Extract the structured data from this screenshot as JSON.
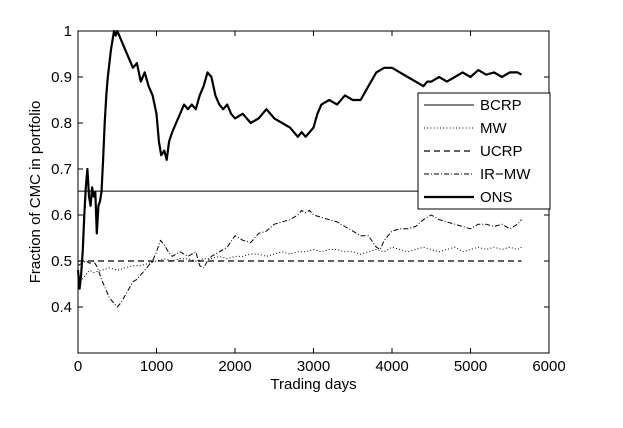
{
  "chart_data": {
    "type": "line",
    "title": "",
    "xlabel": "Trading days",
    "ylabel": "Fraction of CMC in portfolio",
    "xlim": [
      0,
      6000
    ],
    "ylim": [
      0.3,
      1.0
    ],
    "xticks": [
      0,
      1000,
      2000,
      3000,
      4000,
      5000,
      6000
    ],
    "yticks": [
      0.4,
      0.5,
      0.6,
      0.7,
      0.8,
      0.9,
      1.0
    ],
    "xtick_labels": [
      "0",
      "1000",
      "2000",
      "3000",
      "4000",
      "5000",
      "6000"
    ],
    "ytick_labels": [
      "0.4",
      "0.5",
      "0.6",
      "0.7",
      "0.8",
      "0.9",
      "1"
    ],
    "grid": false,
    "legend_position": "right",
    "series": [
      {
        "name": "BCRP",
        "style": "solid-thin",
        "color": "#000000",
        "x": [
          0,
          5650
        ],
        "y": [
          0.652,
          0.652
        ]
      },
      {
        "name": "MW",
        "style": "dotted",
        "color": "#000000",
        "x": [
          0,
          50,
          100,
          150,
          200,
          300,
          400,
          500,
          600,
          700,
          800,
          900,
          1000,
          1100,
          1200,
          1300,
          1400,
          1500,
          1600,
          1700,
          1800,
          1900,
          2000,
          2100,
          2200,
          2300,
          2400,
          2500,
          2600,
          2700,
          2800,
          2900,
          3000,
          3100,
          3200,
          3300,
          3400,
          3500,
          3600,
          3700,
          3800,
          3900,
          4000,
          4100,
          4200,
          4300,
          4400,
          4500,
          4600,
          4700,
          4800,
          4900,
          5000,
          5100,
          5200,
          5300,
          5400,
          5500,
          5600,
          5650
        ],
        "y": [
          0.47,
          0.46,
          0.47,
          0.48,
          0.475,
          0.48,
          0.485,
          0.48,
          0.485,
          0.49,
          0.49,
          0.495,
          0.5,
          0.505,
          0.5,
          0.505,
          0.505,
          0.5,
          0.505,
          0.505,
          0.51,
          0.505,
          0.51,
          0.51,
          0.515,
          0.515,
          0.51,
          0.515,
          0.52,
          0.515,
          0.52,
          0.52,
          0.525,
          0.52,
          0.525,
          0.525,
          0.52,
          0.52,
          0.515,
          0.52,
          0.525,
          0.52,
          0.53,
          0.525,
          0.52,
          0.525,
          0.53,
          0.525,
          0.52,
          0.525,
          0.53,
          0.52,
          0.525,
          0.53,
          0.525,
          0.53,
          0.525,
          0.53,
          0.525,
          0.53
        ]
      },
      {
        "name": "UCRP",
        "style": "dashed",
        "color": "#000000",
        "x": [
          0,
          5650
        ],
        "y": [
          0.5,
          0.5
        ]
      },
      {
        "name": "IR−MW",
        "style": "dashdot",
        "color": "#000000",
        "x": [
          0,
          50,
          100,
          150,
          200,
          250,
          300,
          350,
          400,
          450,
          500,
          550,
          600,
          650,
          700,
          750,
          800,
          850,
          900,
          950,
          1000,
          1050,
          1100,
          1150,
          1200,
          1300,
          1400,
          1500,
          1550,
          1600,
          1650,
          1700,
          1800,
          1900,
          2000,
          2100,
          2200,
          2300,
          2400,
          2500,
          2600,
          2700,
          2800,
          2850,
          2900,
          2950,
          3000,
          3100,
          3200,
          3300,
          3400,
          3500,
          3600,
          3700,
          3800,
          3850,
          3900,
          4000,
          4100,
          4200,
          4300,
          4400,
          4500,
          4600,
          4700,
          4800,
          4900,
          5000,
          5100,
          5200,
          5300,
          5400,
          5500,
          5600,
          5650
        ],
        "y": [
          0.49,
          0.495,
          0.5,
          0.495,
          0.5,
          0.485,
          0.46,
          0.44,
          0.42,
          0.41,
          0.4,
          0.41,
          0.425,
          0.44,
          0.455,
          0.46,
          0.47,
          0.48,
          0.49,
          0.5,
          0.52,
          0.545,
          0.535,
          0.52,
          0.51,
          0.52,
          0.51,
          0.52,
          0.49,
          0.485,
          0.5,
          0.51,
          0.52,
          0.53,
          0.555,
          0.545,
          0.54,
          0.56,
          0.565,
          0.58,
          0.585,
          0.59,
          0.6,
          0.61,
          0.605,
          0.61,
          0.6,
          0.595,
          0.59,
          0.585,
          0.575,
          0.565,
          0.555,
          0.555,
          0.53,
          0.525,
          0.545,
          0.565,
          0.57,
          0.57,
          0.575,
          0.59,
          0.6,
          0.59,
          0.585,
          0.58,
          0.575,
          0.57,
          0.58,
          0.58,
          0.575,
          0.58,
          0.57,
          0.58,
          0.59
        ]
      },
      {
        "name": "ONS",
        "style": "solid-thick",
        "color": "#000000",
        "x": [
          0,
          20,
          40,
          60,
          80,
          100,
          120,
          140,
          160,
          180,
          200,
          220,
          240,
          260,
          280,
          300,
          320,
          340,
          360,
          380,
          400,
          420,
          440,
          460,
          480,
          500,
          550,
          600,
          650,
          700,
          750,
          800,
          850,
          900,
          950,
          1000,
          1030,
          1060,
          1100,
          1130,
          1160,
          1200,
          1250,
          1300,
          1350,
          1400,
          1450,
          1500,
          1550,
          1600,
          1650,
          1700,
          1750,
          1800,
          1850,
          1900,
          1950,
          2000,
          2100,
          2200,
          2300,
          2400,
          2500,
          2600,
          2700,
          2800,
          2850,
          2900,
          3000,
          3050,
          3100,
          3200,
          3300,
          3400,
          3500,
          3600,
          3700,
          3800,
          3900,
          4000,
          4100,
          4200,
          4300,
          4400,
          4450,
          4500,
          4600,
          4700,
          4800,
          4900,
          5000,
          5100,
          5200,
          5300,
          5400,
          5500,
          5600,
          5650
        ],
        "y": [
          0.48,
          0.44,
          0.47,
          0.52,
          0.6,
          0.66,
          0.7,
          0.64,
          0.62,
          0.66,
          0.64,
          0.65,
          0.56,
          0.62,
          0.63,
          0.65,
          0.72,
          0.8,
          0.86,
          0.9,
          0.93,
          0.96,
          0.98,
          1.0,
          0.99,
          1.0,
          0.98,
          0.96,
          0.94,
          0.92,
          0.93,
          0.89,
          0.91,
          0.88,
          0.86,
          0.82,
          0.76,
          0.73,
          0.74,
          0.72,
          0.76,
          0.78,
          0.8,
          0.82,
          0.84,
          0.83,
          0.84,
          0.83,
          0.86,
          0.88,
          0.91,
          0.9,
          0.86,
          0.84,
          0.83,
          0.84,
          0.82,
          0.81,
          0.82,
          0.8,
          0.81,
          0.83,
          0.81,
          0.8,
          0.79,
          0.77,
          0.78,
          0.77,
          0.79,
          0.82,
          0.84,
          0.85,
          0.84,
          0.86,
          0.85,
          0.85,
          0.88,
          0.91,
          0.92,
          0.92,
          0.91,
          0.9,
          0.89,
          0.88,
          0.89,
          0.89,
          0.9,
          0.89,
          0.9,
          0.91,
          0.9,
          0.915,
          0.905,
          0.91,
          0.9,
          0.91,
          0.91,
          0.905
        ]
      }
    ]
  }
}
